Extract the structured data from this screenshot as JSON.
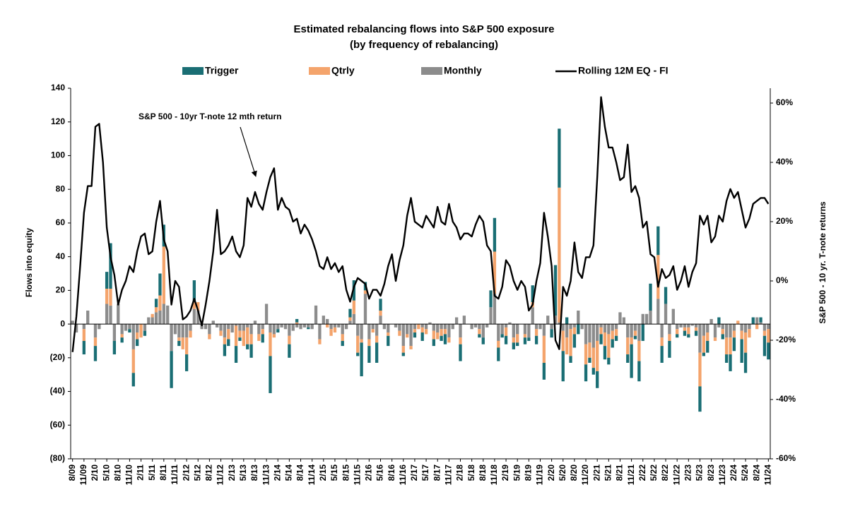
{
  "chart_data": {
    "type": "bar",
    "stacked": true,
    "title": "Estimated rebalancing flows into S&P 500 exposure",
    "subtitle": "(by frequency of rebalancing)",
    "ylabel": "Flows into equity",
    "y2label": "S&P 500 - 10 yr. T-note returns",
    "annotation": "S&P 500 - 10yr T-note 12 mth return",
    "negative_tick_color": "#c00000",
    "ylim": [
      -80,
      140
    ],
    "yticks": [
      {
        "value": -80,
        "label": "(80)"
      },
      {
        "value": -60,
        "label": "(60)"
      },
      {
        "value": -40,
        "label": "(40)"
      },
      {
        "value": -20,
        "label": "(20)"
      },
      0,
      20,
      40,
      60,
      80,
      100,
      120,
      140
    ],
    "y2lim": [
      -60,
      65
    ],
    "y2ticks": [
      {
        "value": -60,
        "label": "-60%"
      },
      {
        "value": -40,
        "label": "-40%"
      },
      {
        "value": -20,
        "label": "-20%"
      },
      {
        "value": 0,
        "label": "0%"
      },
      {
        "value": 20,
        "label": "20%"
      },
      {
        "value": 40,
        "label": "40%"
      },
      {
        "value": 60,
        "label": "60%"
      }
    ],
    "stack_order": [
      2,
      1,
      0
    ],
    "categories": [
      "8/09",
      null,
      null,
      "11/09",
      null,
      null,
      "2/10",
      null,
      null,
      "5/10",
      null,
      null,
      "8/10",
      null,
      null,
      "11/10",
      null,
      null,
      "2/11",
      null,
      null,
      "5/11",
      null,
      null,
      "8/11",
      null,
      null,
      "11/11",
      null,
      null,
      "2/12",
      null,
      null,
      "5/12",
      null,
      null,
      "8/12",
      null,
      null,
      "11/12",
      null,
      null,
      "2/13",
      null,
      null,
      "5/13",
      null,
      null,
      "8/13",
      null,
      null,
      "11/13",
      null,
      null,
      "2/14",
      null,
      null,
      "5/14",
      null,
      null,
      "8/14",
      null,
      null,
      "11/14",
      null,
      null,
      "2/15",
      null,
      null,
      "5/15",
      null,
      null,
      "8/15",
      null,
      null,
      "11/15",
      null,
      null,
      "2/16",
      null,
      null,
      "5/16",
      null,
      null,
      "8/16",
      null,
      null,
      "11/16",
      null,
      null,
      "2/17",
      null,
      null,
      "5/17",
      null,
      null,
      "8/17",
      null,
      null,
      "11/17",
      null,
      null,
      "2/18",
      null,
      null,
      "5/18",
      null,
      null,
      "8/18",
      null,
      null,
      "11/18",
      null,
      null,
      "2/19",
      null,
      null,
      "5/19",
      null,
      null,
      "8/19",
      null,
      null,
      "11/19",
      null,
      null,
      "2/20",
      null,
      null,
      "5/20",
      null,
      null,
      "8/20",
      null,
      null,
      "11/20",
      null,
      null,
      "2/21",
      null,
      null,
      "5/21",
      null,
      null,
      "8/21",
      null,
      null,
      "11/21",
      null,
      null,
      "2/22",
      null,
      null,
      "5/22",
      null,
      null,
      "8/22",
      null,
      null,
      "11/22",
      null,
      null,
      "2/23",
      null,
      null,
      "5/23",
      null,
      null,
      "8/23",
      null,
      null,
      "11/23",
      null,
      null,
      "2/24",
      null,
      null,
      "5/24",
      null,
      null,
      "8/24",
      null,
      null,
      "11/24"
    ],
    "series": [
      {
        "name": "Trigger",
        "color": "#1a6e74",
        "values": [
          0,
          0,
          0,
          -8,
          0,
          0,
          -9,
          0,
          0,
          10,
          27,
          -8,
          0,
          -3,
          0,
          -2,
          -8,
          -4,
          0,
          -3,
          0,
          0,
          5,
          13,
          13,
          0,
          -22,
          0,
          -3,
          0,
          -10,
          0,
          13,
          0,
          0,
          0,
          0,
          0,
          0,
          0,
          -7,
          -4,
          0,
          -10,
          -2,
          0,
          -3,
          -8,
          0,
          0,
          -5,
          0,
          -22,
          0,
          -2,
          0,
          0,
          -8,
          0,
          2,
          0,
          0,
          -1,
          0,
          0,
          0,
          0,
          0,
          0,
          0,
          0,
          -3,
          0,
          5,
          12,
          -2,
          -20,
          5,
          -10,
          0,
          -12,
          7,
          0,
          -6,
          0,
          0,
          0,
          -2,
          0,
          0,
          -3,
          0,
          -5,
          0,
          0,
          -4,
          0,
          -3,
          -6,
          0,
          0,
          0,
          -10,
          0,
          0,
          0,
          0,
          -2,
          -4,
          0,
          10,
          20,
          -8,
          -2,
          -5,
          0,
          -4,
          -2,
          0,
          -4,
          -2,
          10,
          -5,
          0,
          -10,
          0,
          -5,
          30,
          35,
          -18,
          4,
          -4,
          -8,
          -6,
          0,
          -10,
          -3,
          -4,
          -10,
          -6,
          -8,
          -4,
          -5,
          -3,
          0,
          0,
          -5,
          -20,
          -2,
          -12,
          -10,
          0,
          16,
          0,
          17,
          -10,
          10,
          -10,
          0,
          -2,
          0,
          -3,
          -2,
          0,
          -3,
          -15,
          -2,
          -7,
          0,
          0,
          4,
          -3,
          -5,
          -10,
          -8,
          0,
          -14,
          -12,
          0,
          4,
          0,
          3,
          -12,
          -10
        ]
      },
      {
        "name": "Qtrly",
        "color": "#f4a46c",
        "values": [
          0,
          0,
          0,
          -7,
          0,
          0,
          -5,
          0,
          0,
          9,
          10,
          0,
          0,
          -2,
          0,
          0,
          -14,
          -4,
          -8,
          0,
          0,
          2,
          3,
          9,
          34,
          0,
          0,
          0,
          -2,
          -7,
          -10,
          -4,
          4,
          5,
          0,
          0,
          -3,
          0,
          0,
          -3,
          -4,
          -6,
          0,
          -12,
          -4,
          -9,
          -10,
          -6,
          0,
          -4,
          -3,
          0,
          -14,
          -2,
          0,
          0,
          0,
          -5,
          0,
          1,
          0,
          0,
          0,
          0,
          0,
          -3,
          0,
          -2,
          -4,
          -3,
          0,
          -4,
          0,
          2,
          8,
          -10,
          -2,
          2,
          -4,
          -2,
          -4,
          3,
          0,
          -2,
          0,
          0,
          -3,
          -4,
          -2,
          -2,
          -2,
          -3,
          -3,
          -3,
          0,
          -5,
          -4,
          -4,
          -3,
          -3,
          0,
          0,
          -4,
          0,
          0,
          0,
          0,
          -3,
          0,
          0,
          0,
          25,
          -4,
          0,
          -5,
          0,
          -3,
          -5,
          0,
          -2,
          0,
          3,
          -4,
          0,
          -16,
          0,
          0,
          0,
          80,
          -12,
          -10,
          -16,
          -4,
          0,
          0,
          -12,
          -9,
          -12,
          -18,
          -4,
          -8,
          -14,
          -5,
          -4,
          0,
          0,
          -10,
          -4,
          -3,
          -12,
          0,
          0,
          0,
          0,
          26,
          -5,
          0,
          -4,
          0,
          -3,
          0,
          -2,
          -4,
          0,
          -2,
          -20,
          -10,
          -5,
          0,
          -2,
          0,
          -3,
          -10,
          -10,
          -4,
          2,
          -5,
          -12,
          -5,
          0,
          -3,
          0,
          -3,
          -8
        ]
      },
      {
        "name": "Monthly",
        "color": "#8c8c8c",
        "values": [
          2,
          -5,
          0,
          -3,
          8,
          0,
          -8,
          -3,
          0,
          12,
          11,
          -10,
          12,
          -6,
          -4,
          -3,
          -15,
          -5,
          0,
          -4,
          4,
          4,
          7,
          8,
          12,
          11,
          -16,
          -6,
          -8,
          -8,
          -8,
          -4,
          9,
          8,
          -3,
          -3,
          -6,
          2,
          -2,
          -4,
          -8,
          -3,
          -5,
          -1,
          -4,
          -4,
          -2,
          -6,
          2,
          -6,
          -3,
          12,
          -5,
          -6,
          -3,
          -2,
          -3,
          -7,
          -4,
          -2,
          -3,
          -2,
          -2,
          -3,
          11,
          -9,
          5,
          3,
          -3,
          -2,
          -2,
          -6,
          -3,
          2,
          6,
          -7,
          -9,
          18,
          -9,
          -3,
          -7,
          5,
          -3,
          -5,
          0,
          -2,
          -4,
          -13,
          -6,
          -13,
          -3,
          0,
          -2,
          -3,
          1,
          -4,
          -5,
          -3,
          -3,
          -8,
          -3,
          4,
          -8,
          5,
          0,
          -3,
          -2,
          -3,
          -8,
          -2,
          10,
          18,
          -10,
          -6,
          -2,
          1,
          -8,
          -6,
          0,
          -6,
          -8,
          10,
          -3,
          -3,
          -7,
          5,
          -3,
          5,
          1,
          -4,
          -8,
          -3,
          -2,
          8,
          -3,
          -12,
          -11,
          -14,
          -10,
          -2,
          -5,
          -6,
          -4,
          -3,
          7,
          4,
          -8,
          -8,
          -4,
          -10,
          6,
          6,
          8,
          0,
          15,
          -8,
          12,
          -6,
          9,
          -3,
          -2,
          -2,
          -2,
          -1,
          -2,
          -17,
          -7,
          -5,
          3,
          -8,
          -2,
          -3,
          -8,
          -8,
          -4,
          0,
          -4,
          -5,
          -3,
          0,
          4,
          1,
          -4,
          -3
        ]
      },
      {
        "name": "Rolling 12M EQ - FI",
        "color": "#000000",
        "type": "line",
        "axis": "y2",
        "values": [
          -24,
          -12,
          5,
          23,
          32,
          32,
          52,
          53,
          40,
          18,
          8,
          2,
          -8,
          -3,
          0,
          5,
          3,
          10,
          15,
          16,
          9,
          10,
          20,
          27,
          14,
          10,
          -8,
          0,
          -2,
          -13,
          -12,
          -10,
          -6,
          -10,
          -15,
          -8,
          0,
          10,
          24,
          9,
          10,
          12,
          15,
          10,
          8,
          12,
          28,
          25,
          30,
          26,
          24,
          30,
          35,
          38,
          24,
          28,
          25,
          24,
          20,
          21,
          16,
          19,
          17,
          14,
          10,
          5,
          4,
          8,
          4,
          6,
          3,
          5,
          -3,
          -7,
          -2,
          1,
          0,
          -1,
          -6,
          -3,
          -3,
          -5,
          -1,
          5,
          9,
          0,
          7,
          12,
          22,
          28,
          20,
          19,
          18,
          22,
          20,
          18,
          25,
          20,
          19,
          26,
          20,
          18,
          14,
          16,
          16,
          15,
          19,
          22,
          20,
          12,
          10,
          -5,
          -6,
          -2,
          7,
          5,
          0,
          -3,
          0,
          -2,
          -10,
          -8,
          0,
          6,
          23,
          15,
          5,
          -20,
          -23,
          -2,
          -5,
          0,
          13,
          3,
          1,
          8,
          8,
          12,
          35,
          62,
          52,
          45,
          45,
          40,
          34,
          35,
          46,
          30,
          32,
          28,
          18,
          20,
          9,
          8,
          -2,
          4,
          1,
          2,
          5,
          -3,
          0,
          5,
          -2,
          3,
          6,
          22,
          19,
          22,
          13,
          15,
          22,
          20,
          27,
          31,
          28,
          30,
          24,
          18,
          21,
          26,
          27,
          28,
          28,
          26
        ]
      }
    ]
  }
}
